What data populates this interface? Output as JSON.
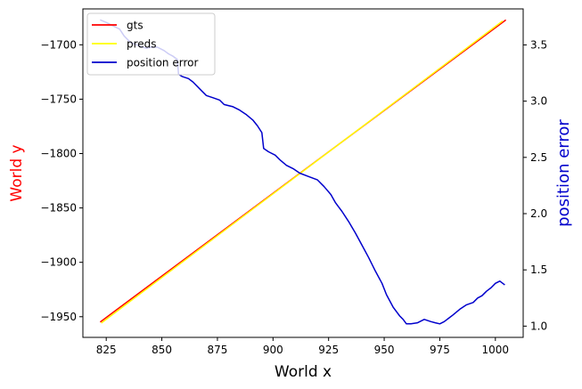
{
  "chart_data": {
    "type": "line",
    "title": "",
    "xlabel": "World x",
    "ylabel_left": "World y",
    "ylabel_right": "position error",
    "xlim": [
      814.5,
      1012.5
    ],
    "ylim_left": [
      -1969.0,
      -1667.0
    ],
    "ylim_right": [
      0.9,
      3.82
    ],
    "xticks": [
      825,
      850,
      875,
      900,
      925,
      950,
      975,
      1000
    ],
    "yticks_left": [
      -1950,
      -1900,
      -1850,
      -1800,
      -1750,
      -1700
    ],
    "yticks_right": [
      1.0,
      1.5,
      2.0,
      2.5,
      3.0,
      3.5
    ],
    "grid": false,
    "legend_position": "top-left",
    "series": [
      {
        "name": "gts",
        "axis": "left",
        "color": "#ff0000",
        "x": [
          822.5,
          1004.5
        ],
        "y": [
          -1954.5,
          -1677.5
        ]
      },
      {
        "name": "preds",
        "axis": "left",
        "color": "#ffff00",
        "x": [
          823.0,
          1003.0
        ],
        "y": [
          -1955.5,
          -1678.5
        ]
      },
      {
        "name": "position error",
        "axis": "right",
        "color": "#0000cc",
        "x": [
          822.5,
          825,
          828,
          831,
          833,
          836,
          840,
          843,
          845,
          848,
          851,
          853,
          855,
          857,
          857.5,
          859,
          862,
          864,
          866,
          868,
          870,
          873,
          876,
          878,
          882,
          885,
          888,
          891,
          893,
          895,
          895.8,
          898,
          901,
          903,
          906,
          909,
          912,
          916,
          920,
          923,
          926,
          928,
          931,
          934,
          937,
          940,
          943,
          946,
          949,
          951,
          954,
          957,
          958.5,
          960,
          962,
          965,
          968,
          971,
          973,
          975,
          977,
          979,
          981,
          984,
          987,
          990,
          992,
          994,
          996,
          998,
          1000,
          1002,
          1004
        ],
        "y": [
          3.72,
          3.7,
          3.67,
          3.64,
          3.58,
          3.52,
          3.49,
          3.47,
          3.48,
          3.48,
          3.45,
          3.42,
          3.4,
          3.37,
          3.24,
          3.22,
          3.2,
          3.17,
          3.13,
          3.09,
          3.05,
          3.03,
          3.01,
          2.97,
          2.95,
          2.92,
          2.88,
          2.83,
          2.78,
          2.72,
          2.58,
          2.55,
          2.52,
          2.48,
          2.43,
          2.4,
          2.36,
          2.33,
          2.3,
          2.24,
          2.17,
          2.1,
          2.02,
          1.93,
          1.83,
          1.72,
          1.61,
          1.49,
          1.38,
          1.28,
          1.17,
          1.09,
          1.06,
          1.02,
          1.02,
          1.03,
          1.06,
          1.04,
          1.03,
          1.02,
          1.04,
          1.07,
          1.1,
          1.15,
          1.19,
          1.21,
          1.25,
          1.27,
          1.31,
          1.34,
          1.38,
          1.4,
          1.37
        ]
      }
    ]
  }
}
